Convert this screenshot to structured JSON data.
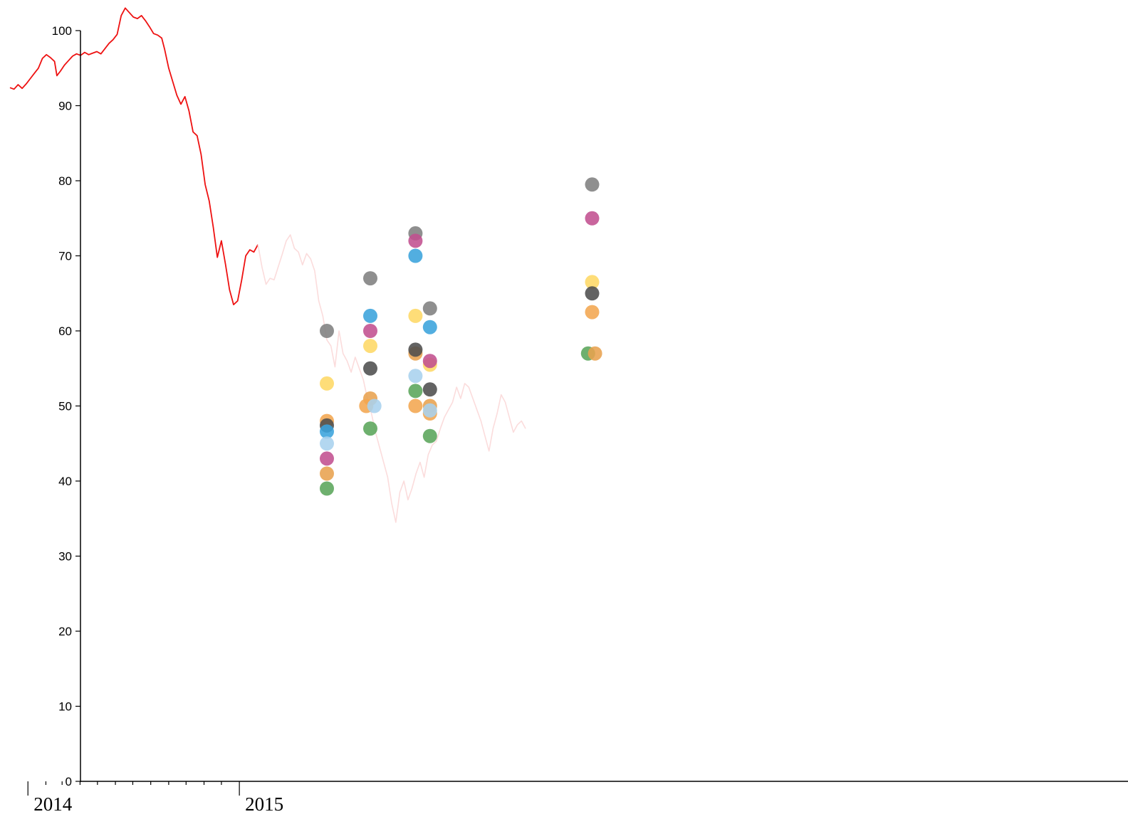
{
  "chart_data": {
    "type": "scatter",
    "title": "",
    "xlabel": "",
    "ylabel": "",
    "ylim": [
      0,
      100
    ],
    "y_ticks": [
      0,
      10,
      20,
      30,
      40,
      50,
      60,
      70,
      80,
      90,
      100
    ],
    "x_range": [
      "2013-12-01",
      "2019-03-15"
    ],
    "x_tick_labels": [
      {
        "date": "2014-01-01",
        "label": "2014"
      },
      {
        "date": "2015-01-01",
        "label": "2015"
      }
    ],
    "x_minor_tick_dates": [
      "2014-02-01",
      "2014-03-01",
      "2014-04-01",
      "2014-05-01",
      "2014-06-01",
      "2014-07-01",
      "2014-08-01",
      "2014-09-01",
      "2014-10-01",
      "2014-11-01",
      "2014-12-01"
    ],
    "grid": false,
    "colors": {
      "actual": "#ee1111",
      "future": "#fbdcdc",
      "palette": [
        "#7f7f7f",
        "#c2508f",
        "#3aa3dc",
        "#fed865",
        "#4d4d4d",
        "#f3a650",
        "#5aa55a",
        "#a8d2ee",
        "#e8a24e"
      ]
    },
    "series": [
      {
        "style": "actual",
        "points": [
          [
            "2013-12-01",
            92.4
          ],
          [
            "2013-12-08",
            92.2
          ],
          [
            "2013-12-15",
            92.8
          ],
          [
            "2013-12-22",
            92.3
          ],
          [
            "2013-12-29",
            92.9
          ],
          [
            "2014-01-05",
            93.6
          ],
          [
            "2014-01-12",
            94.3
          ],
          [
            "2014-01-19",
            95.0
          ],
          [
            "2014-01-26",
            96.3
          ],
          [
            "2014-02-02",
            96.8
          ],
          [
            "2014-02-09",
            96.4
          ],
          [
            "2014-02-16",
            95.9
          ],
          [
            "2014-02-20",
            94.0
          ],
          [
            "2014-02-26",
            94.6
          ],
          [
            "2014-03-05",
            95.4
          ],
          [
            "2014-03-12",
            96.0
          ],
          [
            "2014-03-19",
            96.6
          ],
          [
            "2014-03-26",
            96.9
          ],
          [
            "2014-04-02",
            96.7
          ],
          [
            "2014-04-09",
            97.1
          ],
          [
            "2014-04-16",
            96.8
          ],
          [
            "2014-04-23",
            97.0
          ],
          [
            "2014-04-30",
            97.2
          ],
          [
            "2014-05-07",
            96.9
          ],
          [
            "2014-05-14",
            97.6
          ],
          [
            "2014-05-21",
            98.3
          ],
          [
            "2014-05-28",
            98.8
          ],
          [
            "2014-06-04",
            99.5
          ],
          [
            "2014-06-11",
            102.0
          ],
          [
            "2014-06-18",
            103.0
          ],
          [
            "2014-06-25",
            102.4
          ],
          [
            "2014-07-02",
            101.8
          ],
          [
            "2014-07-09",
            101.6
          ],
          [
            "2014-07-16",
            102.0
          ],
          [
            "2014-07-23",
            101.3
          ],
          [
            "2014-07-30",
            100.5
          ],
          [
            "2014-08-06",
            99.6
          ],
          [
            "2014-08-13",
            99.4
          ],
          [
            "2014-08-20",
            99.0
          ],
          [
            "2014-08-25",
            97.5
          ],
          [
            "2014-09-01",
            95.0
          ],
          [
            "2014-09-08",
            93.2
          ],
          [
            "2014-09-15",
            91.4
          ],
          [
            "2014-09-22",
            90.2
          ],
          [
            "2014-09-29",
            91.2
          ],
          [
            "2014-10-06",
            89.3
          ],
          [
            "2014-10-13",
            86.5
          ],
          [
            "2014-10-20",
            86.0
          ],
          [
            "2014-10-27",
            83.5
          ],
          [
            "2014-11-03",
            79.5
          ],
          [
            "2014-11-10",
            77.3
          ],
          [
            "2014-11-17",
            73.8
          ],
          [
            "2014-11-24",
            69.8
          ],
          [
            "2014-12-01",
            72.0
          ],
          [
            "2014-12-08",
            68.9
          ],
          [
            "2014-12-15",
            65.5
          ],
          [
            "2014-12-22",
            63.5
          ],
          [
            "2014-12-29",
            64.0
          ],
          [
            "2015-01-05",
            66.8
          ],
          [
            "2015-01-12",
            70.0
          ],
          [
            "2015-01-19",
            70.8
          ],
          [
            "2015-01-26",
            70.5
          ],
          [
            "2015-02-02",
            71.5
          ]
        ]
      },
      {
        "style": "future",
        "points": [
          [
            "2015-02-02",
            71.5
          ],
          [
            "2015-02-09",
            68.5
          ],
          [
            "2015-02-16",
            66.2
          ],
          [
            "2015-02-23",
            67.0
          ],
          [
            "2015-03-02",
            66.8
          ],
          [
            "2015-03-09",
            68.5
          ],
          [
            "2015-03-16",
            70.2
          ],
          [
            "2015-03-23",
            72.0
          ],
          [
            "2015-03-30",
            72.8
          ],
          [
            "2015-04-06",
            71.0
          ],
          [
            "2015-04-13",
            70.5
          ],
          [
            "2015-04-20",
            68.8
          ],
          [
            "2015-04-27",
            70.3
          ],
          [
            "2015-05-04",
            69.6
          ],
          [
            "2015-05-11",
            68.0
          ],
          [
            "2015-05-18",
            64.0
          ],
          [
            "2015-05-25",
            62.0
          ],
          [
            "2015-06-01",
            58.8
          ],
          [
            "2015-06-08",
            58.0
          ],
          [
            "2015-06-15",
            55.2
          ],
          [
            "2015-06-22",
            60.0
          ],
          [
            "2015-06-29",
            57.0
          ],
          [
            "2015-07-06",
            56.0
          ],
          [
            "2015-07-13",
            54.5
          ],
          [
            "2015-07-20",
            56.5
          ],
          [
            "2015-07-27",
            55.0
          ],
          [
            "2015-08-03",
            53.5
          ],
          [
            "2015-08-10",
            51.0
          ],
          [
            "2015-08-17",
            49.0
          ],
          [
            "2015-08-24",
            46.5
          ],
          [
            "2015-08-31",
            44.5
          ],
          [
            "2015-09-07",
            42.5
          ],
          [
            "2015-09-14",
            40.5
          ],
          [
            "2015-09-21",
            37.0
          ],
          [
            "2015-09-28",
            34.5
          ],
          [
            "2015-10-05",
            38.5
          ],
          [
            "2015-10-12",
            40.0
          ],
          [
            "2015-10-19",
            37.5
          ],
          [
            "2015-10-26",
            39.0
          ],
          [
            "2015-11-02",
            41.0
          ],
          [
            "2015-11-09",
            42.5
          ],
          [
            "2015-11-16",
            40.5
          ],
          [
            "2015-11-23",
            43.5
          ],
          [
            "2015-11-30",
            44.8
          ],
          [
            "2015-12-07",
            45.3
          ],
          [
            "2015-12-14",
            47.0
          ],
          [
            "2015-12-21",
            48.5
          ],
          [
            "2015-12-28",
            49.5
          ],
          [
            "2016-01-04",
            50.5
          ],
          [
            "2016-01-11",
            52.5
          ],
          [
            "2016-01-18",
            51.0
          ],
          [
            "2016-01-25",
            53.0
          ],
          [
            "2016-02-01",
            52.5
          ],
          [
            "2016-02-08",
            51.0
          ],
          [
            "2016-02-15",
            49.5
          ],
          [
            "2016-02-22",
            48.0
          ],
          [
            "2016-02-29",
            46.0
          ],
          [
            "2016-03-07",
            44.0
          ],
          [
            "2016-03-14",
            47.0
          ],
          [
            "2016-03-21",
            49.0
          ],
          [
            "2016-03-28",
            51.5
          ],
          [
            "2016-04-04",
            50.5
          ],
          [
            "2016-04-11",
            48.5
          ],
          [
            "2016-04-18",
            46.5
          ],
          [
            "2016-04-25",
            47.5
          ],
          [
            "2016-05-02",
            48.0
          ],
          [
            "2016-05-09",
            47.0
          ]
        ]
      }
    ],
    "forecast_points": [
      {
        "x": "2015-06-01",
        "y": 60.0,
        "color": "#7f7f7f"
      },
      {
        "x": "2015-06-01",
        "y": 53.0,
        "color": "#fed865"
      },
      {
        "x": "2015-06-01",
        "y": 48.0,
        "color": "#f3a650"
      },
      {
        "x": "2015-06-01",
        "y": 47.4,
        "color": "#4d4d4d"
      },
      {
        "x": "2015-06-01",
        "y": 46.6,
        "color": "#3aa3dc"
      },
      {
        "x": "2015-06-01",
        "y": 45.0,
        "color": "#a8d2ee"
      },
      {
        "x": "2015-06-01",
        "y": 43.0,
        "color": "#c2508f"
      },
      {
        "x": "2015-06-01",
        "y": 41.0,
        "color": "#e8a24e"
      },
      {
        "x": "2015-06-01",
        "y": 39.0,
        "color": "#5aa55a"
      },
      {
        "x": "2015-08-15",
        "y": 67.0,
        "color": "#7f7f7f"
      },
      {
        "x": "2015-08-15",
        "y": 62.0,
        "color": "#3aa3dc"
      },
      {
        "x": "2015-08-15",
        "y": 60.0,
        "color": "#c2508f"
      },
      {
        "x": "2015-08-15",
        "y": 58.0,
        "color": "#fed865"
      },
      {
        "x": "2015-08-15",
        "y": 55.0,
        "color": "#4d4d4d"
      },
      {
        "x": "2015-08-15",
        "y": 51.0,
        "color": "#e8a24e"
      },
      {
        "x": "2015-08-08",
        "y": 50.0,
        "color": "#f3a650"
      },
      {
        "x": "2015-08-22",
        "y": 50.0,
        "color": "#a8d2ee"
      },
      {
        "x": "2015-08-15",
        "y": 47.0,
        "color": "#5aa55a"
      },
      {
        "x": "2015-11-01",
        "y": 73.0,
        "color": "#7f7f7f"
      },
      {
        "x": "2015-11-01",
        "y": 72.0,
        "color": "#c2508f"
      },
      {
        "x": "2015-11-01",
        "y": 70.0,
        "color": "#3aa3dc"
      },
      {
        "x": "2015-11-01",
        "y": 62.0,
        "color": "#fed865"
      },
      {
        "x": "2015-11-01",
        "y": 57.0,
        "color": "#e8a24e"
      },
      {
        "x": "2015-11-01",
        "y": 57.5,
        "color": "#4d4d4d"
      },
      {
        "x": "2015-11-01",
        "y": 54.0,
        "color": "#a8d2ee"
      },
      {
        "x": "2015-11-01",
        "y": 52.0,
        "color": "#5aa55a"
      },
      {
        "x": "2015-11-01",
        "y": 50.0,
        "color": "#f3a650"
      },
      {
        "x": "2015-11-26",
        "y": 63.0,
        "color": "#7f7f7f"
      },
      {
        "x": "2015-11-26",
        "y": 60.5,
        "color": "#3aa3dc"
      },
      {
        "x": "2015-11-26",
        "y": 55.5,
        "color": "#fed865"
      },
      {
        "x": "2015-11-26",
        "y": 56.0,
        "color": "#c2508f"
      },
      {
        "x": "2015-11-26",
        "y": 52.2,
        "color": "#4d4d4d"
      },
      {
        "x": "2015-11-26",
        "y": 50.0,
        "color": "#e8a24e"
      },
      {
        "x": "2015-11-26",
        "y": 49.0,
        "color": "#f3a650"
      },
      {
        "x": "2015-11-26",
        "y": 49.4,
        "color": "#a8d2ee"
      },
      {
        "x": "2015-11-26",
        "y": 46.0,
        "color": "#5aa55a"
      },
      {
        "x": "2016-09-01",
        "y": 79.5,
        "color": "#7f7f7f"
      },
      {
        "x": "2016-09-01",
        "y": 75.0,
        "color": "#c2508f"
      },
      {
        "x": "2016-09-01",
        "y": 66.5,
        "color": "#fed865"
      },
      {
        "x": "2016-09-01",
        "y": 65.0,
        "color": "#4d4d4d"
      },
      {
        "x": "2016-09-01",
        "y": 62.5,
        "color": "#f3a650"
      },
      {
        "x": "2016-08-25",
        "y": 57.0,
        "color": "#5aa55a"
      },
      {
        "x": "2016-09-06",
        "y": 57.0,
        "color": "#e8a24e"
      }
    ]
  }
}
